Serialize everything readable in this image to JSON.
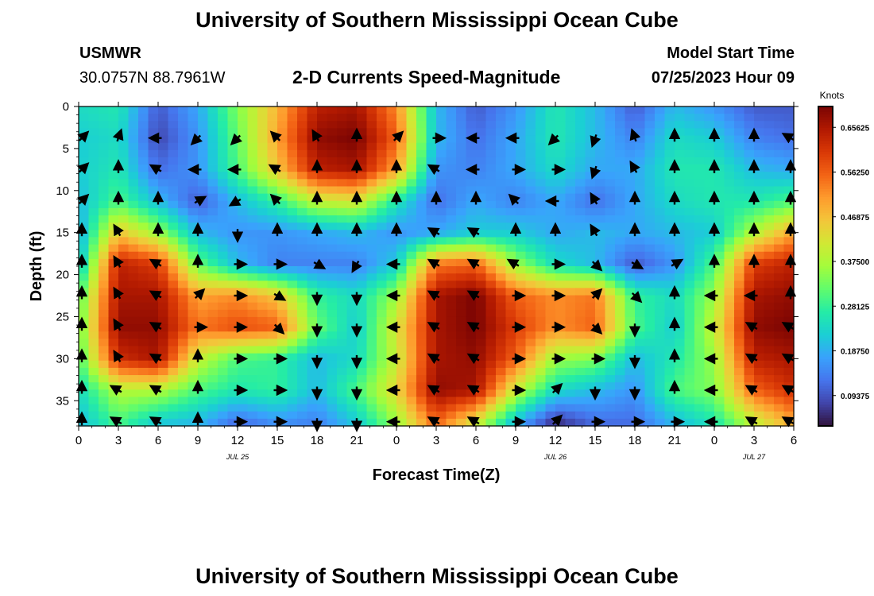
{
  "header": {
    "title": "University of Southern Mississippi Ocean Cube",
    "station": "USMWR",
    "coords": "30.0757N  88.7961W",
    "subtitle": "2-D Currents Speed-Magnitude",
    "model_label": "Model Start Time",
    "model_time": "07/25/2023 Hour 09"
  },
  "footer": {
    "title": "University of Southern Mississippi Ocean Cube"
  },
  "chart_data": {
    "type": "heatmap",
    "title": "2-D Currents Speed-Magnitude",
    "xlabel": "Forecast Time(Z)",
    "ylabel": "Depth (ft)",
    "x_ticks": [
      "0",
      "3",
      "6",
      "9",
      "12",
      "15",
      "18",
      "21",
      "0",
      "3",
      "6",
      "9",
      "12",
      "15",
      "18",
      "21",
      "0",
      "3",
      "6"
    ],
    "x_range_hours": [
      0,
      54
    ],
    "date_labels": [
      {
        "label": "JUL 25",
        "hour": 12
      },
      {
        "label": "JUL 26",
        "hour": 36
      },
      {
        "label": "JUL 27",
        "hour": 51
      }
    ],
    "y_ticks": [
      "0",
      "5",
      "10",
      "15",
      "20",
      "25",
      "30",
      "35"
    ],
    "y_range_ft": [
      0,
      38
    ],
    "colorbar": {
      "label": "Knots",
      "min": 0.03,
      "max": 0.7,
      "ticks": [
        "0.65625",
        "0.56250",
        "0.46875",
        "0.37500",
        "0.28125",
        "0.18750",
        "0.09375"
      ],
      "colors": [
        "#30123b",
        "#4145ab",
        "#4675ed",
        "#39a2fc",
        "#1bcfd4",
        "#24eca6",
        "#61fc6c",
        "#a4fc3b",
        "#d1e834",
        "#f3c63a",
        "#fe9b2d",
        "#f36315",
        "#d93806",
        "#b11901",
        "#7a0403"
      ]
    },
    "speed_grid": {
      "depths_ft": [
        0,
        3.75,
        7.5,
        11.25,
        15,
        18.75,
        22.5,
        26.25,
        30,
        33.75,
        37.5
      ],
      "hours": [
        0,
        3,
        6,
        9,
        12,
        15,
        18,
        21,
        24,
        27,
        30,
        33,
        36,
        39,
        42,
        45,
        48,
        51,
        54
      ],
      "values_knots": [
        [
          0.24,
          0.26,
          0.1,
          0.18,
          0.34,
          0.48,
          0.64,
          0.66,
          0.52,
          0.2,
          0.1,
          0.16,
          0.26,
          0.2,
          0.1,
          0.2,
          0.16,
          0.1,
          0.1
        ],
        [
          0.22,
          0.24,
          0.08,
          0.16,
          0.32,
          0.5,
          0.68,
          0.7,
          0.56,
          0.2,
          0.12,
          0.18,
          0.26,
          0.2,
          0.14,
          0.24,
          0.22,
          0.14,
          0.12
        ],
        [
          0.22,
          0.26,
          0.12,
          0.16,
          0.3,
          0.46,
          0.64,
          0.66,
          0.5,
          0.16,
          0.14,
          0.18,
          0.24,
          0.18,
          0.18,
          0.26,
          0.26,
          0.2,
          0.18
        ],
        [
          0.2,
          0.3,
          0.2,
          0.1,
          0.2,
          0.28,
          0.4,
          0.42,
          0.26,
          0.12,
          0.18,
          0.14,
          0.18,
          0.12,
          0.18,
          0.24,
          0.26,
          0.26,
          0.3
        ],
        [
          0.18,
          0.46,
          0.36,
          0.2,
          0.16,
          0.16,
          0.18,
          0.2,
          0.16,
          0.18,
          0.22,
          0.22,
          0.18,
          0.2,
          0.18,
          0.2,
          0.22,
          0.38,
          0.5
        ],
        [
          0.2,
          0.64,
          0.6,
          0.32,
          0.2,
          0.14,
          0.14,
          0.14,
          0.22,
          0.54,
          0.56,
          0.36,
          0.24,
          0.2,
          0.1,
          0.16,
          0.3,
          0.6,
          0.64
        ],
        [
          0.3,
          0.66,
          0.66,
          0.5,
          0.52,
          0.46,
          0.28,
          0.24,
          0.36,
          0.66,
          0.7,
          0.56,
          0.52,
          0.54,
          0.28,
          0.24,
          0.36,
          0.66,
          0.68
        ],
        [
          0.32,
          0.68,
          0.68,
          0.54,
          0.58,
          0.56,
          0.32,
          0.22,
          0.42,
          0.66,
          0.7,
          0.6,
          0.52,
          0.56,
          0.3,
          0.22,
          0.4,
          0.68,
          0.7
        ],
        [
          0.3,
          0.62,
          0.66,
          0.4,
          0.3,
          0.28,
          0.2,
          0.24,
          0.4,
          0.66,
          0.68,
          0.56,
          0.36,
          0.34,
          0.2,
          0.26,
          0.36,
          0.64,
          0.66
        ],
        [
          0.24,
          0.38,
          0.38,
          0.3,
          0.26,
          0.28,
          0.2,
          0.3,
          0.44,
          0.68,
          0.66,
          0.4,
          0.24,
          0.2,
          0.16,
          0.3,
          0.34,
          0.56,
          0.62
        ],
        [
          0.2,
          0.3,
          0.22,
          0.2,
          0.12,
          0.16,
          0.14,
          0.22,
          0.36,
          0.56,
          0.42,
          0.2,
          0.06,
          0.12,
          0.12,
          0.2,
          0.26,
          0.4,
          0.5
        ]
      ]
    },
    "vectors": {
      "depths_ft": [
        3.75,
        7.5,
        11.25,
        15,
        18.75,
        22.5,
        26.25,
        30,
        33.75,
        37.5
      ],
      "hours": [
        0,
        3,
        6,
        9,
        12,
        15,
        18,
        21,
        24,
        27,
        30,
        33,
        36,
        39,
        42,
        45,
        48,
        51,
        54
      ],
      "directions_deg": [
        [
          45,
          20,
          270,
          225,
          225,
          315,
          330,
          0,
          45,
          90,
          270,
          270,
          225,
          200,
          340,
          0,
          0,
          0,
          300
        ],
        [
          45,
          0,
          300,
          270,
          270,
          300,
          0,
          0,
          0,
          300,
          270,
          90,
          90,
          200,
          330,
          0,
          0,
          0,
          0
        ],
        [
          45,
          0,
          0,
          60,
          240,
          315,
          0,
          0,
          0,
          0,
          0,
          315,
          270,
          330,
          0,
          0,
          0,
          0,
          0
        ],
        [
          0,
          330,
          0,
          0,
          180,
          0,
          0,
          0,
          0,
          300,
          300,
          0,
          0,
          330,
          0,
          0,
          0,
          0,
          0
        ],
        [
          0,
          330,
          300,
          0,
          90,
          90,
          120,
          210,
          270,
          300,
          300,
          300,
          90,
          135,
          120,
          60,
          0,
          0,
          0
        ],
        [
          0,
          330,
          300,
          45,
          90,
          120,
          180,
          180,
          270,
          300,
          300,
          90,
          90,
          45,
          135,
          0,
          270,
          270,
          0
        ],
        [
          0,
          330,
          300,
          90,
          90,
          135,
          180,
          180,
          270,
          300,
          300,
          90,
          90,
          135,
          180,
          0,
          270,
          300,
          300
        ],
        [
          0,
          330,
          300,
          0,
          90,
          90,
          180,
          180,
          270,
          300,
          300,
          90,
          90,
          90,
          180,
          0,
          270,
          300,
          300
        ],
        [
          0,
          300,
          300,
          0,
          90,
          90,
          180,
          180,
          270,
          300,
          300,
          90,
          45,
          180,
          180,
          0,
          270,
          300,
          300
        ],
        [
          0,
          300,
          300,
          0,
          90,
          90,
          180,
          180,
          270,
          300,
          300,
          90,
          45,
          90,
          90,
          90,
          270,
          300,
          300
        ]
      ]
    }
  }
}
